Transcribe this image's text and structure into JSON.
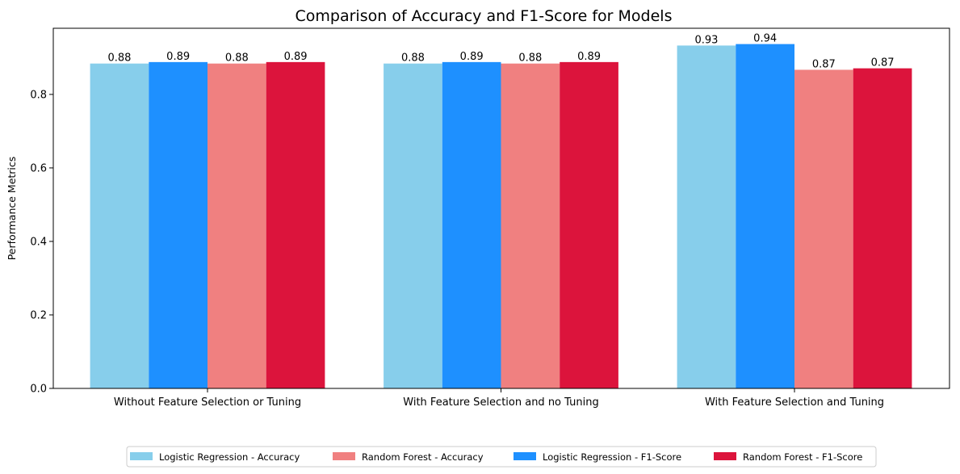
{
  "chart_data": {
    "type": "bar",
    "title": "Comparison of Accuracy and F1-Score for Models",
    "xlabel": "",
    "ylabel": "Performance Metrics",
    "ylim": [
      0,
      0.98
    ],
    "yticks": [
      0.0,
      0.2,
      0.4,
      0.6,
      0.8
    ],
    "ytick_labels": [
      "0.0",
      "0.2",
      "0.4",
      "0.6",
      "0.8"
    ],
    "categories": [
      "Without Feature Selection or Tuning",
      "With Feature Selection and no Tuning",
      "With Feature Selection and Tuning"
    ],
    "series": [
      {
        "name": "Logistic Regression - Accuracy",
        "color": "#87ceeb",
        "values": [
          0.884,
          0.884,
          0.933
        ],
        "labels": [
          "0.88",
          "0.88",
          "0.93"
        ]
      },
      {
        "name": "Logistic Regression - F1-Score",
        "color": "#1e90ff",
        "values": [
          0.888,
          0.888,
          0.937
        ],
        "labels": [
          "0.89",
          "0.89",
          "0.94"
        ]
      },
      {
        "name": "Random Forest - Accuracy",
        "color": "#f08080",
        "values": [
          0.884,
          0.884,
          0.867
        ],
        "labels": [
          "0.88",
          "0.88",
          "0.87"
        ]
      },
      {
        "name": "Random Forest - F1-Score",
        "color": "#dc143c",
        "values": [
          0.888,
          0.888,
          0.871
        ],
        "labels": [
          "0.89",
          "0.89",
          "0.87"
        ]
      }
    ],
    "legend": {
      "placement": "bottom-center",
      "columns": 4,
      "order": [
        0,
        2,
        1,
        3
      ]
    },
    "grid": false
  }
}
